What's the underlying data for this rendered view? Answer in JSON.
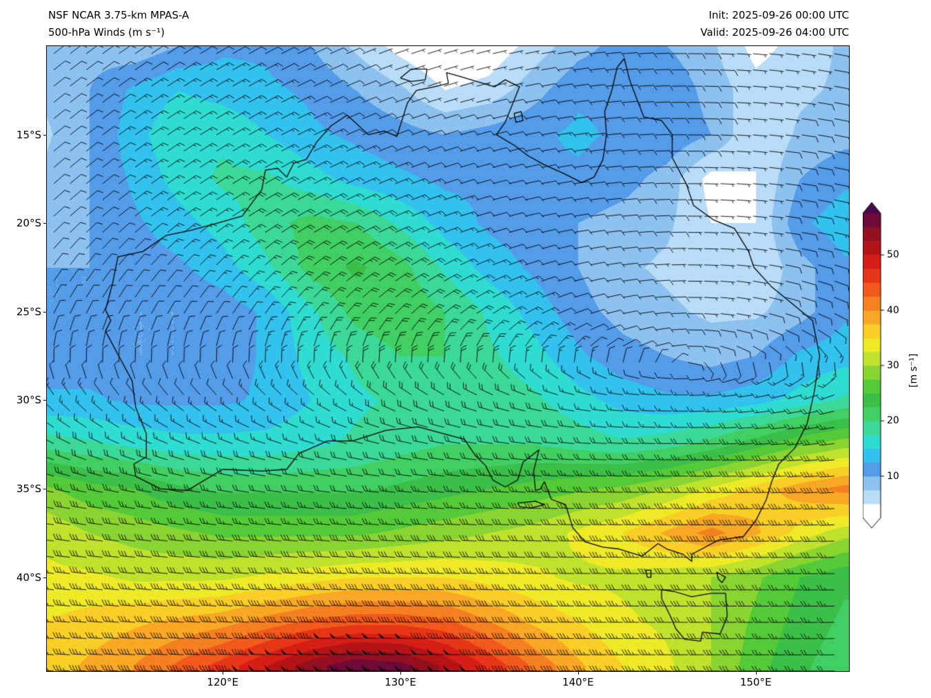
{
  "header": {
    "title_line1": "NSF NCAR 3.75-km MPAS-A",
    "title_line2": "500-hPa Winds (m s⁻¹)",
    "init_label": "Init: 2025-09-26 00:00 UTC",
    "valid_label": "Valid: 2025-09-26 04:00 UTC"
  },
  "axes": {
    "lon_range": [
      110.1,
      155.25
    ],
    "lat_range": [
      -45.3,
      -10.0
    ],
    "x_ticks": [
      {
        "label": "120°E",
        "lon": 120
      },
      {
        "label": "130°E",
        "lon": 130
      },
      {
        "label": "140°E",
        "lon": 140
      },
      {
        "label": "150°E",
        "lon": 150
      }
    ],
    "y_ticks": [
      {
        "label": "15°S",
        "lat": -15
      },
      {
        "label": "20°S",
        "lat": -20
      },
      {
        "label": "25°S",
        "lat": -25
      },
      {
        "label": "30°S",
        "lat": -30
      },
      {
        "label": "35°S",
        "lat": -35
      },
      {
        "label": "40°S",
        "lat": -40
      }
    ]
  },
  "colorbar": {
    "label": "[m s⁻¹]",
    "ticks": [
      10,
      20,
      30,
      40,
      50
    ],
    "vmin": 2.5,
    "vmax": 57.5,
    "band_step": 2.5,
    "band_colors": [
      "#ffffff",
      "#ffffff",
      "#b9ddf8",
      "#8cc1f0",
      "#549be8",
      "#33c1ee",
      "#2fdcd2",
      "#3bd898",
      "#41cf63",
      "#3cbf48",
      "#55ca39",
      "#8ad432",
      "#bfe22c",
      "#eeea28",
      "#f9cf27",
      "#f8a825",
      "#f58021",
      "#f15a1c",
      "#e73518",
      "#d51f16",
      "#b51417",
      "#930f22",
      "#6d0a38",
      "#4a0a50"
    ]
  },
  "chart_data": {
    "type": "heatmap",
    "title": "NSF NCAR 3.75-km MPAS-A 500-hPa Winds",
    "units": "m s⁻¹",
    "legend_position": "right-colorbar",
    "lon_start": 110,
    "lon_step": 2.5,
    "lat_start": -10,
    "lat_step": -2.5,
    "wind_speed_grid": [
      [
        10,
        9,
        8,
        10,
        12,
        12,
        10,
        7,
        4,
        2,
        3,
        6,
        9,
        11,
        10,
        8,
        4,
        6,
        8
      ],
      [
        8,
        10,
        13,
        15,
        14,
        13,
        12,
        10,
        8,
        5,
        6,
        9,
        12,
        12,
        12,
        9,
        6,
        7,
        8
      ],
      [
        7,
        10,
        14,
        17,
        17,
        15,
        13,
        12,
        11,
        10,
        11,
        12,
        13,
        12,
        12,
        10,
        5,
        8,
        9
      ],
      [
        8,
        10,
        13,
        16,
        18,
        18,
        16,
        14,
        13,
        12,
        12,
        12,
        12,
        11,
        9,
        4,
        5,
        10,
        12
      ],
      [
        9,
        10,
        12,
        14,
        16,
        19,
        21,
        20,
        17,
        14,
        12,
        11,
        10,
        9,
        8,
        5,
        5,
        12,
        14
      ],
      [
        10,
        10,
        11,
        12,
        14,
        17,
        21,
        23,
        21,
        17,
        14,
        12,
        10,
        8,
        7,
        6,
        5,
        9,
        12
      ],
      [
        10,
        10,
        10,
        10,
        11,
        13,
        17,
        21,
        22,
        20,
        17,
        14,
        11,
        9,
        8,
        7,
        7,
        9,
        12
      ],
      [
        11,
        11,
        10,
        10,
        11,
        13,
        16,
        18,
        20,
        20,
        18,
        16,
        13,
        11,
        10,
        9,
        10,
        13,
        14
      ],
      [
        13,
        13,
        12,
        12,
        12,
        13,
        15,
        17,
        18,
        19,
        19,
        18,
        16,
        14,
        13,
        13,
        14,
        16,
        18
      ],
      [
        19,
        18,
        17,
        16,
        16,
        16,
        17,
        18,
        19,
        20,
        20,
        20,
        19,
        18,
        19,
        21,
        24,
        27,
        29
      ],
      [
        28,
        26,
        25,
        23,
        22,
        22,
        22,
        22,
        23,
        24,
        25,
        26,
        27,
        28,
        30,
        33,
        36,
        39,
        41
      ],
      [
        32,
        30,
        29,
        28,
        27,
        27,
        27,
        27,
        28,
        29,
        30,
        31,
        33,
        35,
        38,
        41,
        38,
        34,
        31
      ],
      [
        33,
        33,
        32,
        32,
        32,
        33,
        34,
        35,
        35,
        35,
        34,
        33,
        32,
        32,
        31,
        30,
        28,
        25,
        23
      ],
      [
        35,
        36,
        37,
        38,
        39,
        41,
        43,
        44,
        44,
        43,
        40,
        37,
        35,
        33,
        32,
        30,
        27,
        24,
        22
      ],
      [
        36,
        38,
        40,
        43,
        46,
        50,
        54,
        57,
        56,
        52,
        47,
        42,
        38,
        35,
        33,
        30,
        26,
        23,
        21
      ]
    ],
    "wind_direction_model": {
      "u_bg_lats": [
        -45,
        -42.5,
        -40,
        -37.5,
        -35,
        -32.5,
        -30,
        -28,
        -25,
        -20,
        -15,
        -10
      ],
      "u_bg_vals": [
        38,
        34,
        31,
        28,
        22,
        14,
        7,
        0,
        -5,
        -11,
        -10,
        -8
      ],
      "high_center_lon": 146,
      "v_coef": 0.5,
      "v_gain_lats": [
        -45,
        -36,
        -30,
        -22,
        -10
      ],
      "v_gain_vals": [
        0.12,
        0.25,
        0.5,
        0.6,
        0.35
      ]
    },
    "barb_spacing_px": 23.6
  },
  "map": {
    "coastlines": {
      "australia": [
        [
          115.7,
          -31.9
        ],
        [
          115.1,
          -30.4
        ],
        [
          114.9,
          -28.9
        ],
        [
          114.2,
          -27.6
        ],
        [
          113.4,
          -26.1
        ],
        [
          113.7,
          -25.5
        ],
        [
          113.4,
          -24.9
        ],
        [
          113.8,
          -23.4
        ],
        [
          114.1,
          -21.9
        ],
        [
          115.5,
          -21.6
        ],
        [
          116.8,
          -20.7
        ],
        [
          118.2,
          -20.4
        ],
        [
          119.7,
          -20.0
        ],
        [
          121.1,
          -19.6
        ],
        [
          122.2,
          -18.1
        ],
        [
          122.4,
          -17.0
        ],
        [
          123.1,
          -16.9
        ],
        [
          123.6,
          -17.4
        ],
        [
          124.0,
          -16.6
        ],
        [
          124.7,
          -16.4
        ],
        [
          125.3,
          -15.4
        ],
        [
          126.1,
          -14.5
        ],
        [
          127.0,
          -13.9
        ],
        [
          128.2,
          -15.0
        ],
        [
          129.1,
          -14.8
        ],
        [
          129.8,
          -15.1
        ],
        [
          130.4,
          -13.2
        ],
        [
          130.9,
          -12.5
        ],
        [
          131.9,
          -12.3
        ],
        [
          132.7,
          -12.1
        ],
        [
          132.6,
          -11.5
        ],
        [
          133.3,
          -11.7
        ],
        [
          134.3,
          -12.0
        ],
        [
          135.3,
          -12.3
        ],
        [
          135.9,
          -11.9
        ],
        [
          136.7,
          -12.3
        ],
        [
          136.3,
          -13.3
        ],
        [
          135.9,
          -14.3
        ],
        [
          135.4,
          -15.0
        ],
        [
          136.4,
          -15.6
        ],
        [
          137.2,
          -16.2
        ],
        [
          138.1,
          -16.7
        ],
        [
          139.2,
          -17.2
        ],
        [
          140.2,
          -17.7
        ],
        [
          140.9,
          -17.4
        ],
        [
          141.4,
          -16.4
        ],
        [
          141.6,
          -15.0
        ],
        [
          141.5,
          -13.7
        ],
        [
          141.9,
          -12.5
        ],
        [
          142.2,
          -11.2
        ],
        [
          142.6,
          -10.7
        ],
        [
          142.9,
          -11.9
        ],
        [
          143.2,
          -12.7
        ],
        [
          143.7,
          -14.0
        ],
        [
          144.7,
          -14.2
        ],
        [
          145.3,
          -15.0
        ],
        [
          145.3,
          -16.3
        ],
        [
          146.1,
          -17.8
        ],
        [
          146.5,
          -19.0
        ],
        [
          147.6,
          -19.8
        ],
        [
          148.8,
          -20.3
        ],
        [
          149.6,
          -21.6
        ],
        [
          149.9,
          -22.5
        ],
        [
          150.9,
          -23.6
        ],
        [
          152.0,
          -24.5
        ],
        [
          153.2,
          -25.5
        ],
        [
          153.6,
          -27.5
        ],
        [
          153.3,
          -29.5
        ],
        [
          152.9,
          -31.3
        ],
        [
          152.2,
          -32.7
        ],
        [
          151.3,
          -33.6
        ],
        [
          150.9,
          -34.6
        ],
        [
          150.6,
          -35.6
        ],
        [
          150.0,
          -36.8
        ],
        [
          149.3,
          -37.7
        ],
        [
          147.9,
          -37.9
        ],
        [
          146.4,
          -38.7
        ],
        [
          146.4,
          -39.1
        ],
        [
          145.9,
          -38.7
        ],
        [
          145.0,
          -38.4
        ],
        [
          144.5,
          -38.1
        ],
        [
          143.6,
          -38.8
        ],
        [
          142.3,
          -38.4
        ],
        [
          141.4,
          -38.3
        ],
        [
          140.4,
          -38.0
        ],
        [
          139.7,
          -37.2
        ],
        [
          139.3,
          -35.9
        ],
        [
          138.5,
          -35.6
        ],
        [
          138.1,
          -34.6
        ],
        [
          137.9,
          -35.0
        ],
        [
          137.6,
          -35.1
        ],
        [
          137.5,
          -34.0
        ],
        [
          137.8,
          -32.8
        ],
        [
          136.9,
          -33.5
        ],
        [
          136.6,
          -34.5
        ],
        [
          135.9,
          -34.9
        ],
        [
          135.2,
          -34.5
        ],
        [
          134.8,
          -33.7
        ],
        [
          134.2,
          -33.1
        ],
        [
          133.6,
          -32.2
        ],
        [
          131.0,
          -31.5
        ],
        [
          129.2,
          -31.7
        ],
        [
          127.3,
          -32.3
        ],
        [
          125.9,
          -32.3
        ],
        [
          124.3,
          -33.0
        ],
        [
          123.6,
          -33.9
        ],
        [
          122.2,
          -34.0
        ],
        [
          120.0,
          -33.9
        ],
        [
          118.0,
          -35.1
        ],
        [
          116.5,
          -35.0
        ],
        [
          115.1,
          -34.3
        ],
        [
          115.0,
          -33.6
        ],
        [
          115.7,
          -33.2
        ],
        [
          115.7,
          -31.9
        ]
      ],
      "tasmania": [
        [
          144.7,
          -40.7
        ],
        [
          145.4,
          -40.8
        ],
        [
          146.4,
          -41.1
        ],
        [
          147.5,
          -40.9
        ],
        [
          148.3,
          -40.9
        ],
        [
          148.4,
          -42.2
        ],
        [
          148.0,
          -43.2
        ],
        [
          147.0,
          -43.1
        ],
        [
          146.9,
          -43.6
        ],
        [
          146.0,
          -43.5
        ],
        [
          145.5,
          -42.9
        ],
        [
          145.2,
          -42.2
        ],
        [
          144.7,
          -41.2
        ],
        [
          144.7,
          -40.7
        ]
      ],
      "tiwi_islands": [
        [
          130.0,
          -11.8
        ],
        [
          130.6,
          -11.3
        ],
        [
          131.5,
          -11.3
        ],
        [
          131.4,
          -11.9
        ],
        [
          130.6,
          -12.0
        ],
        [
          130.0,
          -11.8
        ]
      ],
      "kangaroo_island": [
        [
          136.6,
          -35.8
        ],
        [
          137.6,
          -35.7
        ],
        [
          138.1,
          -35.9
        ],
        [
          137.3,
          -36.1
        ],
        [
          136.7,
          -36.0
        ],
        [
          136.6,
          -35.8
        ]
      ],
      "groote_eylandt": [
        [
          136.4,
          -13.8
        ],
        [
          136.8,
          -13.7
        ],
        [
          136.9,
          -14.2
        ],
        [
          136.5,
          -14.3
        ],
        [
          136.4,
          -13.8
        ]
      ],
      "king_island": [
        [
          143.8,
          -39.6
        ],
        [
          144.1,
          -39.6
        ],
        [
          144.1,
          -40.0
        ],
        [
          143.9,
          -40.0
        ],
        [
          143.8,
          -39.6
        ]
      ],
      "flinders_island": [
        [
          147.8,
          -39.7
        ],
        [
          148.3,
          -40.0
        ],
        [
          148.1,
          -40.3
        ],
        [
          147.9,
          -40.1
        ],
        [
          147.8,
          -39.7
        ]
      ]
    }
  }
}
